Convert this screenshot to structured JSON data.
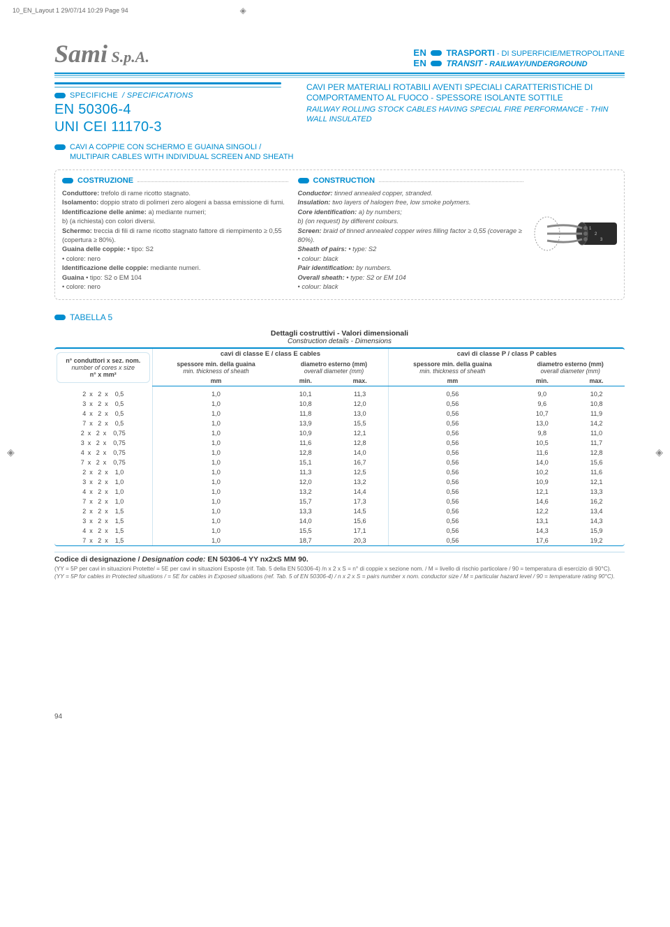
{
  "meta": {
    "line": "10_EN_Layout 1  29/07/14  10:29  Page 94"
  },
  "brand": {
    "name": "Sami",
    "suffix": " S.p.A."
  },
  "header": {
    "prefix": "EN",
    "line1_it": "TRASPORTI",
    "line1_it_sub": " - DI SUPERFICIE/METROPOLITANE",
    "line2_en": "TRANSIT",
    "line2_en_sub": " - RAILWAY/UNDERGROUND"
  },
  "specbox": {
    "label_it": "SPECIFICHE",
    "label_en": " / SPECIFICATIONS",
    "code1": "EN 50306-4",
    "code2": "UNI CEI 11170-3",
    "title_it": "CAVI PER MATERIALI ROTABILI AVENTI SPECIALI CARATTERISTICHE DI COMPORTAMENTO AL FUOCO - SPESSORE ISOLANTE SOTTILE",
    "title_en": "RAILWAY ROLLING STOCK CABLES HAVING SPECIAL FIRE PERFORMANCE - THIN WALL INSULATED"
  },
  "subhead": {
    "it": "CAVI A COPPIE CON SCHERMO E GUAINA SINGOLI /",
    "en": "MULTIPAIR CABLES WITH INDIVIDUAL SCREEN AND SHEATH"
  },
  "construction": {
    "head_it": "COSTRUZIONE",
    "head_en": "CONSTRUCTION",
    "it": [
      {
        "b": "Conduttore:",
        "t": " trefolo di rame ricotto stagnato."
      },
      {
        "b": "Isolamento:",
        "t": " doppio strato di polimeri zero alogeni a bassa emissione di fumi."
      },
      {
        "b": "Identificazione delle anime:",
        "t": " a) mediante numeri;"
      },
      {
        "b": "",
        "t": "b) (a richiesta) con colori diversi."
      },
      {
        "b": "Schermo:",
        "t": " treccia di fili di rame ricotto stagnato fattore di riempimento ≥ 0,55 (copertura ≥ 80%)."
      },
      {
        "b": "Guaina delle coppie:",
        "t": "  • tipo: S2"
      },
      {
        "b": "",
        "t": "                                 • colore: nero"
      },
      {
        "b": "Identificazione delle coppie:",
        "t": " mediante numeri."
      },
      {
        "b": "Guaina",
        "t": "      • tipo: S2 o EM 104"
      },
      {
        "b": "",
        "t": "                 • colore: nero"
      }
    ],
    "en": [
      {
        "b": "Conductor:",
        "t": " tinned annealed copper, stranded."
      },
      {
        "b": "Insulation:",
        "t": " two layers of halogen free, low smoke polymers."
      },
      {
        "b": "Core identification:",
        "t": " a) by numbers;"
      },
      {
        "b": "",
        "t": "b) (on request) by different colours."
      },
      {
        "b": "Screen:",
        "t": " braid of tinned annealed copper wires filling factor ≥ 0,55 (coverage ≥ 80%)."
      },
      {
        "b": "Sheath of pairs:",
        "t": "        • type: S2"
      },
      {
        "b": "",
        "t": "                                   • colour: black"
      },
      {
        "b": "Pair identification:",
        "t": " by numbers."
      },
      {
        "b": "Overall sheath:",
        "t": "         • type: S2 or EM 104"
      },
      {
        "b": "",
        "t": "                                   • colour: black"
      }
    ]
  },
  "table5": {
    "label": "TABELLA 5",
    "caption_it": "Dettagli costruttivi - Valori dimensionali",
    "caption_en": "Construction details - Dimensions",
    "leftcol": {
      "l1": "n° conduttori x sez. nom.",
      "l2": "number of cores x size",
      "l3": "n° x mm²"
    },
    "group_e": "cavi di classe E / class E cables",
    "group_p": "cavi di classe P / class P cables",
    "col_sp_it": "spessore min. della guaina",
    "col_sp_en": "min. thickness of sheath",
    "col_di_it": "diametro esterno (mm)",
    "col_di_en": "overall diameter (mm)",
    "unit_mm": "mm",
    "unit_min": "min.",
    "unit_max": "max.",
    "rows": [
      {
        "size": "2  x   2  x    0,5",
        "e_sp": "1,0",
        "e_min": "10,1",
        "e_max": "11,3",
        "p_sp": "0,56",
        "p_min": "9,0",
        "p_max": "10,2"
      },
      {
        "size": "3  x   2  x    0,5",
        "e_sp": "1,0",
        "e_min": "10,8",
        "e_max": "12,0",
        "p_sp": "0,56",
        "p_min": "9,6",
        "p_max": "10,8"
      },
      {
        "size": "4  x   2  x    0,5",
        "e_sp": "1,0",
        "e_min": "11,8",
        "e_max": "13,0",
        "p_sp": "0,56",
        "p_min": "10,7",
        "p_max": "11,9"
      },
      {
        "size": "7  x   2  x    0,5",
        "e_sp": "1,0",
        "e_min": "13,9",
        "e_max": "15,5",
        "p_sp": "0,56",
        "p_min": "13,0",
        "p_max": "14,2"
      },
      {
        "size": "2  x   2  x    0,75",
        "e_sp": "1,0",
        "e_min": "10,9",
        "e_max": "12,1",
        "p_sp": "0,56",
        "p_min": "9,8",
        "p_max": "11,0"
      },
      {
        "size": "3  x   2  x    0,75",
        "e_sp": "1,0",
        "e_min": "11,6",
        "e_max": "12,8",
        "p_sp": "0,56",
        "p_min": "10,5",
        "p_max": "11,7"
      },
      {
        "size": "4  x   2  x    0,75",
        "e_sp": "1,0",
        "e_min": "12,8",
        "e_max": "14,0",
        "p_sp": "0,56",
        "p_min": "11,6",
        "p_max": "12,8"
      },
      {
        "size": "7  x   2  x    0,75",
        "e_sp": "1,0",
        "e_min": "15,1",
        "e_max": "16,7",
        "p_sp": "0,56",
        "p_min": "14,0",
        "p_max": "15,6"
      },
      {
        "size": "2  x   2  x    1,0",
        "e_sp": "1,0",
        "e_min": "11,3",
        "e_max": "12,5",
        "p_sp": "0,56",
        "p_min": "10,2",
        "p_max": "11,6"
      },
      {
        "size": "3  x   2  x    1,0",
        "e_sp": "1,0",
        "e_min": "12,0",
        "e_max": "13,2",
        "p_sp": "0,56",
        "p_min": "10,9",
        "p_max": "12,1"
      },
      {
        "size": "4  x   2  x    1,0",
        "e_sp": "1,0",
        "e_min": "13,2",
        "e_max": "14,4",
        "p_sp": "0,56",
        "p_min": "12,1",
        "p_max": "13,3"
      },
      {
        "size": "7  x   2  x    1,0",
        "e_sp": "1,0",
        "e_min": "15,7",
        "e_max": "17,3",
        "p_sp": "0,56",
        "p_min": "14,6",
        "p_max": "16,2"
      },
      {
        "size": "2  x   2  x    1,5",
        "e_sp": "1,0",
        "e_min": "13,3",
        "e_max": "14,5",
        "p_sp": "0,56",
        "p_min": "12,2",
        "p_max": "13,4"
      },
      {
        "size": "3  x   2  x    1,5",
        "e_sp": "1,0",
        "e_min": "14,0",
        "e_max": "15,6",
        "p_sp": "0,56",
        "p_min": "13,1",
        "p_max": "14,3"
      },
      {
        "size": "4  x   2  x    1,5",
        "e_sp": "1,0",
        "e_min": "15,5",
        "e_max": "17,1",
        "p_sp": "0,56",
        "p_min": "14,3",
        "p_max": "15,9"
      },
      {
        "size": "7  x   2  x    1,5",
        "e_sp": "1,0",
        "e_min": "18,7",
        "e_max": "20,3",
        "p_sp": "0,56",
        "p_min": "17,6",
        "p_max": "19,2"
      }
    ]
  },
  "descode": {
    "label_it": "Codice di designazione / ",
    "label_en": "Designation code:",
    "value": " EN 50306-4 YY nx2xS MM 90.",
    "note_it": "(YY = 5P per cavi in situazioni Protette/ = 5E per cavi in situazioni Esposte (rif. Tab. 5 della EN 50306-4) /n x 2 x S = n° di coppie x sezione nom. / M = livello di rischio particolare / 90 = temperatura di esercizio di 90°C).",
    "note_en": "(YY = 5P for cables in Protected situations / = 5E for cables in Exposed situations (ref. Tab. 5 of EN 50306-4) / n x 2 x S = pairs number x nom. conductor size / M = particular hazard level / 90 = temperature rating 90°C)."
  },
  "pagenum": "94",
  "colors": {
    "primary": "#008ccf",
    "primary_light": "#8fcbe4",
    "text": "#555555",
    "border": "#cfe5f0"
  }
}
